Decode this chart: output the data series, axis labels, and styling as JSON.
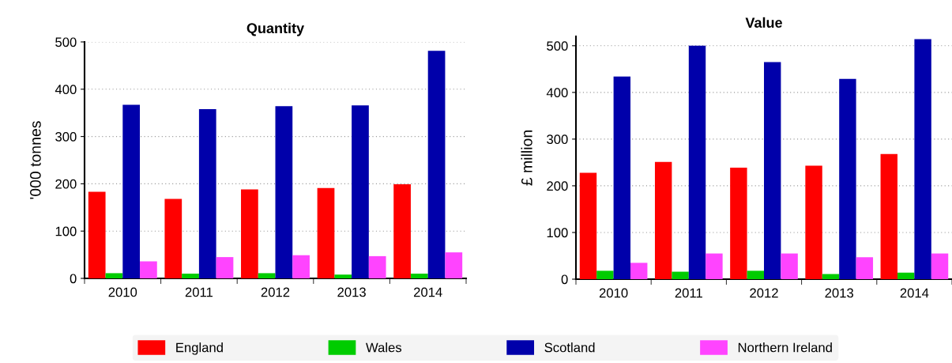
{
  "chart_data": [
    {
      "type": "bar",
      "title": "Quantity",
      "ylabel": "'000 tonnes",
      "categories": [
        "2010",
        "2011",
        "2012",
        "2013",
        "2014"
      ],
      "ylim": [
        0,
        500
      ],
      "yticks": [
        0,
        100,
        200,
        300,
        400,
        500
      ],
      "grid": "y",
      "legend": "bottom",
      "series": [
        {
          "name": "England",
          "color": "#ff0000",
          "values": [
            183,
            168,
            188,
            191,
            199
          ]
        },
        {
          "name": "Wales",
          "color": "#00cc00",
          "values": [
            11,
            10,
            11,
            8,
            10
          ]
        },
        {
          "name": "Scotland",
          "color": "#0000aa",
          "values": [
            367,
            358,
            364,
            366,
            481
          ]
        },
        {
          "name": "Northern Ireland",
          "color": "#ff44ff",
          "values": [
            36,
            45,
            49,
            47,
            55
          ]
        }
      ]
    },
    {
      "type": "bar",
      "title": "Value",
      "ylabel": "£ million",
      "categories": [
        "2010",
        "2011",
        "2012",
        "2013",
        "2014"
      ],
      "ylim": [
        0,
        520
      ],
      "yticks": [
        0,
        100,
        200,
        300,
        400,
        500
      ],
      "grid": "y",
      "series": [
        {
          "color": "#ff0000",
          "values": [
            228,
            251,
            239,
            243,
            268
          ]
        },
        {
          "color": "#00cc00",
          "values": [
            18,
            16,
            18,
            11,
            14
          ]
        },
        {
          "color": "#0000aa",
          "values": [
            434,
            500,
            465,
            429,
            514
          ]
        },
        {
          "color": "#ff44ff",
          "values": [
            35,
            55,
            55,
            47,
            55
          ]
        }
      ]
    }
  ]
}
